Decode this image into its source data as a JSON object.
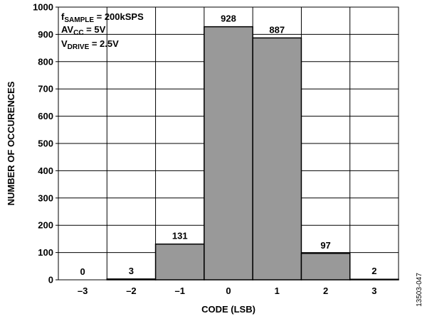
{
  "chart_data": {
    "type": "bar",
    "categories": [
      "–3",
      "–2",
      "–1",
      "0",
      "1",
      "2",
      "3"
    ],
    "values": [
      0,
      3,
      131,
      928,
      887,
      97,
      2
    ],
    "data_labels": [
      "0",
      "3",
      "131",
      "928",
      "887",
      "97",
      "2"
    ],
    "xlabel": "CODE (LSB)",
    "ylabel": "NUMBER OF OCCURENCES",
    "ylim": [
      0,
      1000
    ],
    "yticks": [
      0,
      100,
      200,
      300,
      400,
      500,
      600,
      700,
      800,
      900,
      1000
    ],
    "ytick_labels": [
      "0",
      "100",
      "200",
      "300",
      "400",
      "500",
      "600",
      "700",
      "800",
      "900",
      "1000"
    ],
    "grid": true,
    "bar_color": "#999999",
    "annotations": [
      {
        "main": "f",
        "sub": "SAMPLE",
        "rest": " = 200kSPS"
      },
      {
        "main": "AV",
        "sub": "CC",
        "rest": " = 5V"
      },
      {
        "main": "V",
        "sub": "DRIVE",
        "rest": " = 2.5V"
      }
    ],
    "figure_id": "13503-047"
  }
}
